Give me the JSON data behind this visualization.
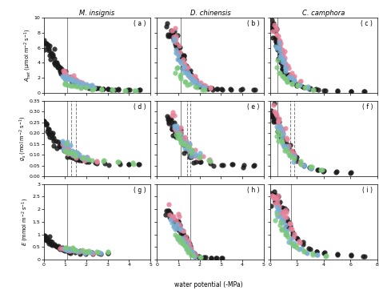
{
  "titles_col": [
    "M. insignis",
    "D. chinensis",
    "C. camphora"
  ],
  "panel_labels": [
    "( a )",
    "( b )",
    "( c )",
    "( d )",
    "( e )",
    "( f )",
    "( g )",
    "( h )",
    "( i )"
  ],
  "xlabel": "water potential (-MPa)",
  "colors": {
    "black": "#1a1a1a",
    "pink": "#E8829A",
    "blue": "#7BAFD4",
    "green": "#7DC87D"
  },
  "vlines": {
    "a": [
      [
        1.1,
        "solid"
      ]
    ],
    "b": [
      [
        1.1,
        "solid"
      ]
    ],
    "c": [
      [
        0.55,
        "solid"
      ]
    ],
    "d": [
      [
        1.1,
        "solid"
      ],
      [
        1.3,
        "dashed"
      ],
      [
        1.5,
        "dashed"
      ]
    ],
    "e": [
      [
        1.1,
        "solid"
      ],
      [
        1.4,
        "dashed"
      ],
      [
        1.55,
        "dashed"
      ]
    ],
    "f": [
      [
        0.55,
        "solid"
      ],
      [
        1.5,
        "dashed"
      ],
      [
        1.8,
        "dashed"
      ]
    ],
    "g": [
      [
        1.1,
        "solid"
      ]
    ],
    "h": [
      [
        1.55,
        "solid"
      ]
    ],
    "i": [
      [
        1.55,
        "solid"
      ]
    ]
  }
}
